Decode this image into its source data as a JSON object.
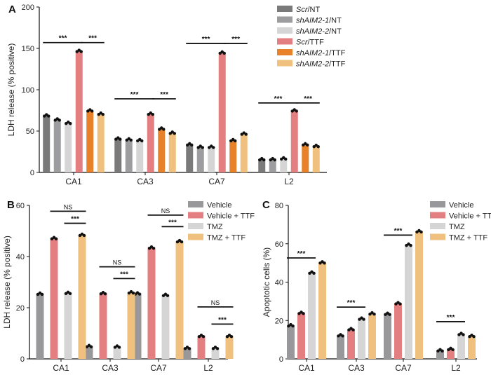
{
  "chart_data": [
    {
      "panel": "A",
      "type": "bar",
      "ylabel": "LDH release (% positive)",
      "ylim": [
        0,
        200
      ],
      "yticks": [
        0,
        50,
        100,
        150,
        200
      ],
      "categories": [
        "CA1",
        "CA3",
        "CA7",
        "L2"
      ],
      "legend_position": "top-right",
      "series": [
        {
          "name": "Scr/NT",
          "italic": "Scr",
          "plain": "/NT",
          "color": "#7a7a7a",
          "values": [
            69,
            41,
            34,
            16
          ]
        },
        {
          "name": "shAIM2-1/NT",
          "italic": "shAIM2-1",
          "plain": "/NT",
          "color": "#9d9d9f",
          "values": [
            64,
            40,
            31,
            16
          ]
        },
        {
          "name": "shAIM2-2/NT",
          "italic": "shAIM2-2",
          "plain": "/NT",
          "color": "#d5d5d5",
          "values": [
            60,
            39,
            31,
            17
          ]
        },
        {
          "name": "Scr/TTF",
          "italic": "Scr",
          "plain": "/TTF",
          "color": "#e37f80",
          "values": [
            147,
            71,
            145,
            75
          ]
        },
        {
          "name": "shAIM2-1/TTF",
          "italic": "shAIM2-1",
          "plain": "/TTF",
          "color": "#e8822a",
          "values": [
            75,
            53,
            39,
            34
          ]
        },
        {
          "name": "shAIM2-2/TTF",
          "italic": "shAIM2-2",
          "plain": "/TTF",
          "color": "#f0c07f",
          "values": [
            71,
            48,
            47,
            32
          ]
        }
      ],
      "significance": [
        {
          "category": "CA1",
          "from": 0,
          "to": 3,
          "y": 157,
          "label": "***"
        },
        {
          "category": "CA1",
          "from": 3.5,
          "to": 5,
          "y": 157,
          "label": "***"
        },
        {
          "category": "CA3",
          "from": 0,
          "to": 3,
          "y": 89,
          "label": "***"
        },
        {
          "category": "CA3",
          "from": 3.5,
          "to": 5,
          "y": 89,
          "label": "***"
        },
        {
          "category": "CA7",
          "from": 0,
          "to": 3,
          "y": 156,
          "label": "***"
        },
        {
          "category": "CA7",
          "from": 3.5,
          "to": 5,
          "y": 156,
          "label": "***"
        },
        {
          "category": "L2",
          "from": 0,
          "to": 3,
          "y": 84,
          "label": "***"
        },
        {
          "category": "L2",
          "from": 3.5,
          "to": 5,
          "y": 84,
          "label": "***"
        }
      ]
    },
    {
      "panel": "B",
      "type": "bar",
      "ylabel": "LDH release (% positive)",
      "ylim": [
        0,
        60
      ],
      "yticks": [
        0,
        20,
        40,
        60
      ],
      "categories": [
        "CA1",
        "CA3",
        "CA7",
        "L2"
      ],
      "legend_position": "top-right",
      "series": [
        {
          "name": "Vehicle",
          "color": "#98989b",
          "values": [
            25.5,
            5,
            25.6,
            4.3
          ]
        },
        {
          "name": "Vehicle + TTF",
          "color": "#e37f80",
          "values": [
            47.2,
            25.7,
            43.5,
            9
          ]
        },
        {
          "name": "TMZ",
          "color": "#d5d5d5",
          "values": [
            25.8,
            4.8,
            25,
            4.3
          ]
        },
        {
          "name": "TMZ + TTF",
          "color": "#f0c07f",
          "values": [
            48.5,
            26,
            46,
            9
          ]
        }
      ],
      "significance": [
        {
          "category": "CA1",
          "from": 1,
          "to": 3,
          "y": 57.7,
          "label": "NS"
        },
        {
          "category": "CA1",
          "from": 2,
          "to": 3,
          "y": 53,
          "label": "***"
        },
        {
          "category": "CA3",
          "from": 1,
          "to": 3,
          "y": 36,
          "label": "NS"
        },
        {
          "category": "CA3",
          "from": 2,
          "to": 3,
          "y": 31.4,
          "label": "***"
        },
        {
          "category": "CA7",
          "from": 1,
          "to": 3,
          "y": 56.2,
          "label": "NS"
        },
        {
          "category": "CA7",
          "from": 2,
          "to": 3,
          "y": 51.7,
          "label": "***"
        },
        {
          "category": "L2",
          "from": 1,
          "to": 3,
          "y": 20.3,
          "label": "NS"
        },
        {
          "category": "L2",
          "from": 2,
          "to": 3,
          "y": 13.6,
          "label": "***"
        }
      ]
    },
    {
      "panel": "C",
      "type": "bar",
      "ylabel": "Apoptotic cells (%)",
      "ylim": [
        0,
        80
      ],
      "yticks": [
        0,
        20,
        40,
        60,
        80
      ],
      "categories": [
        "CA1",
        "CA3",
        "CA7",
        "L2"
      ],
      "legend_position": "top-right",
      "series": [
        {
          "name": "Vehicle",
          "color": "#98989b",
          "values": [
            17.5,
            12.3,
            23.5,
            4.5
          ]
        },
        {
          "name": "Vehicle + TTF",
          "color": "#e37f80",
          "values": [
            24,
            15.5,
            29,
            5.2
          ]
        },
        {
          "name": "TMZ",
          "color": "#d5d5d5",
          "values": [
            45,
            21,
            59.5,
            13
          ]
        },
        {
          "name": "TMZ + TTF",
          "color": "#f0c07f",
          "values": [
            50.3,
            23.7,
            66.5,
            12
          ]
        }
      ],
      "significance": [
        {
          "category": "CA1",
          "from": 0,
          "to": 2,
          "y": 52.6,
          "label": "***"
        },
        {
          "category": "CA3",
          "from": 0,
          "to": 2,
          "y": 27,
          "label": "***"
        },
        {
          "category": "CA7",
          "from": 0,
          "to": 2,
          "y": 64.5,
          "label": "***"
        },
        {
          "category": "L2",
          "from": 0,
          "to": 2,
          "y": 19.4,
          "label": "***"
        }
      ]
    }
  ]
}
